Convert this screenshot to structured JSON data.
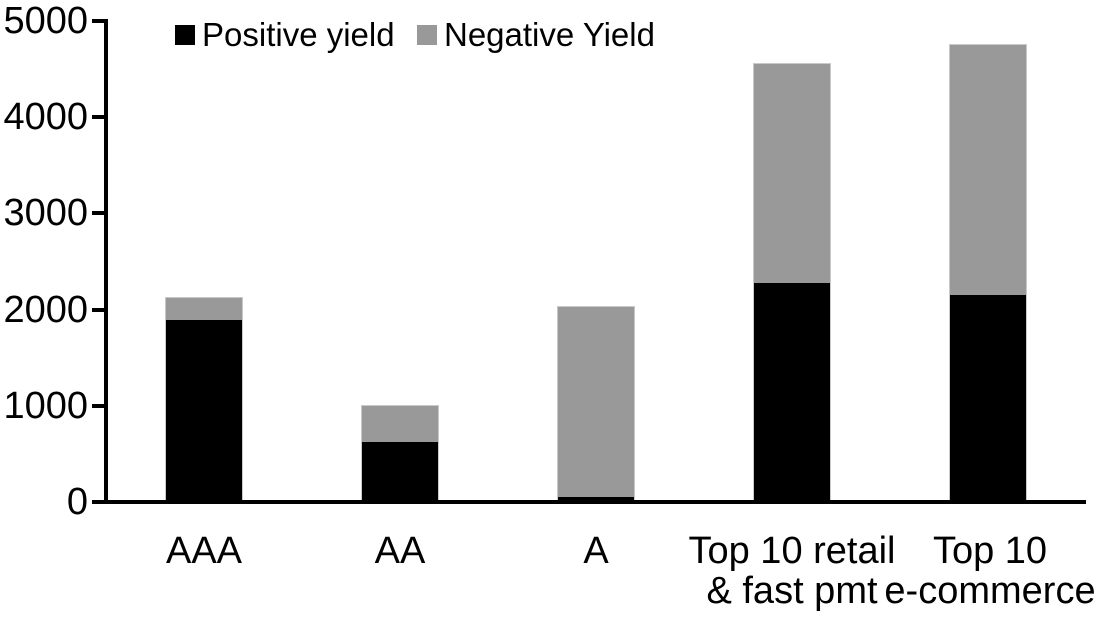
{
  "chart_data": {
    "type": "bar",
    "stacked": true,
    "title": "",
    "xlabel": "",
    "ylabel": "",
    "categories": [
      "AAA",
      "AA",
      "A",
      "Top 10 retail\n& fast pmt",
      "Top 10\ne-commerce"
    ],
    "series": [
      {
        "name": "Positive yield",
        "color": "#000000",
        "values": [
          1890,
          625,
          50,
          2280,
          2150
        ]
      },
      {
        "name": "Negative Yield",
        "color": "#999999",
        "values": [
          230,
          375,
          1980,
          2270,
          2600
        ]
      }
    ],
    "totals": [
      2120,
      1000,
      2030,
      4550,
      4750
    ],
    "ylim": [
      0,
      5000
    ],
    "yticks": [
      0,
      1000,
      2000,
      3000,
      4000,
      5000
    ],
    "legend_position": "top",
    "grid": false,
    "axis_color": "#000000",
    "bar_outline_color": "#c9c9c9"
  }
}
